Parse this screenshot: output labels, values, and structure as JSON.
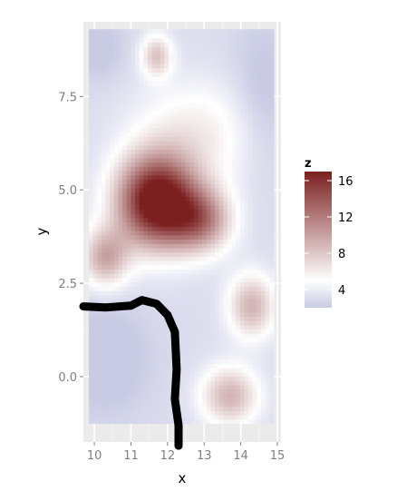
{
  "chart_data": {
    "type": "heatmap",
    "title": "",
    "xlabel": "x",
    "ylabel": "y",
    "xlim": [
      9.7,
      15.1
    ],
    "ylim": [
      -1.75,
      9.5
    ],
    "x_ticks": [
      10,
      11,
      12,
      13,
      14,
      15
    ],
    "y_ticks": [
      0.0,
      2.5,
      5.0,
      7.5
    ],
    "x_tick_labels": [
      "10",
      "11",
      "12",
      "13",
      "14",
      "15"
    ],
    "y_tick_labels": [
      "0.0",
      "2.5",
      "5.0",
      "7.5"
    ],
    "grid": true,
    "legend": {
      "title": "z",
      "position": "right",
      "values": [
        16,
        12,
        8,
        4
      ],
      "labels": [
        "16",
        "12",
        "8",
        "4"
      ],
      "range": [
        2,
        17
      ],
      "colors": {
        "low": "#c9cbe4",
        "mid": "#ffffff",
        "high": "#7b1f1f"
      },
      "midpoint": 5
    },
    "surface": {
      "x_range": [
        9.85,
        14.9
      ],
      "y_range": [
        -1.25,
        9.3
      ],
      "baseline": 3,
      "peaks": [
        {
          "x": 11.7,
          "y": 4.7,
          "z": 16,
          "sx": 0.75,
          "sy": 0.85
        },
        {
          "x": 12.9,
          "y": 4.2,
          "z": 8,
          "sx": 0.6,
          "sy": 0.6
        },
        {
          "x": 10.3,
          "y": 3.2,
          "z": 6.5,
          "sx": 0.45,
          "sy": 0.55
        },
        {
          "x": 14.3,
          "y": 1.9,
          "z": 6,
          "sx": 0.45,
          "sy": 0.6
        },
        {
          "x": 13.7,
          "y": -0.5,
          "z": 6,
          "sx": 0.55,
          "sy": 0.55
        },
        {
          "x": 11.7,
          "y": 8.6,
          "z": 5,
          "sx": 0.3,
          "sy": 0.4
        },
        {
          "x": 12.8,
          "y": 6.5,
          "z": 3,
          "sx": 1.2,
          "sy": 1.0
        }
      ],
      "dips": [
        {
          "x": 10.3,
          "y": 0.5,
          "z": -2,
          "sx": 0.8,
          "sy": 1.0
        },
        {
          "x": 14.6,
          "y": 7.5,
          "z": -1.5,
          "sx": 0.6,
          "sy": 1.4
        },
        {
          "x": 10.1,
          "y": 8.8,
          "z": -1.5,
          "sx": 0.5,
          "sy": 0.6
        }
      ]
    },
    "overlay_stroke": {
      "color": "#000000",
      "points": [
        [
          9.7,
          1.88
        ],
        [
          10.3,
          1.85
        ],
        [
          11.0,
          1.9
        ],
        [
          11.3,
          2.05
        ],
        [
          11.7,
          1.95
        ],
        [
          12.0,
          1.65
        ],
        [
          12.2,
          1.2
        ],
        [
          12.25,
          0.2
        ],
        [
          12.2,
          -0.6
        ],
        [
          12.3,
          -1.3
        ],
        [
          12.3,
          -1.85
        ]
      ]
    }
  }
}
